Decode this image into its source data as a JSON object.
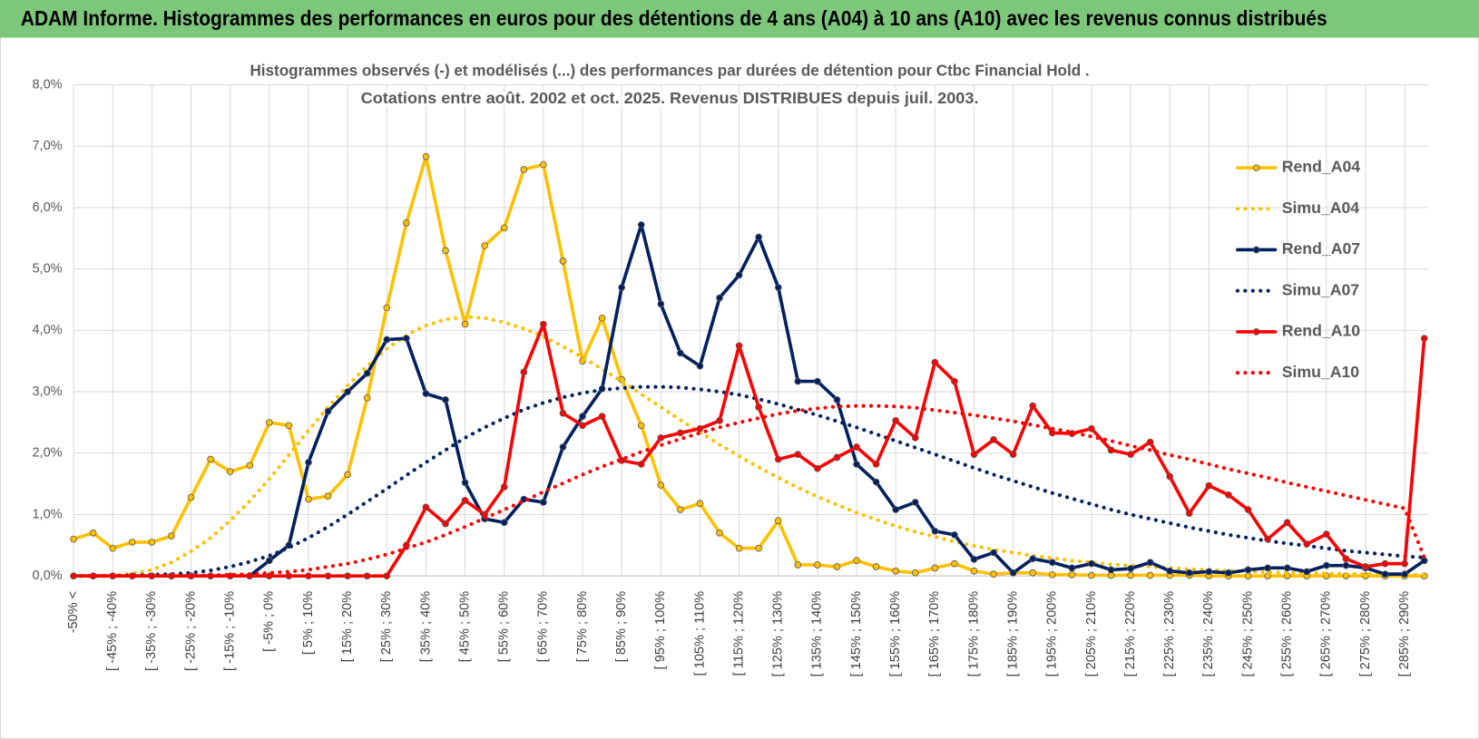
{
  "header": {
    "title": "ADAM Informe. Histogrammes des performances en euros pour des détentions de 4 ans (A04) à 10 ans (A10) avec les revenus connus distribués"
  },
  "chart_data": {
    "type": "line",
    "title": [
      "Histogrammes observés (-) et modélisés (...) des performances par durées de détention pour Ctbc Financial Hold .",
      "Cotations entre août. 2002 et oct. 2025. Revenus DISTRIBUES depuis juil. 2003."
    ],
    "categories": [
      "-50% <",
      null,
      "[ -45% ; -40%",
      null,
      "[ -35% ; -30%",
      null,
      "[ -25% ; -20%",
      null,
      "[ -15% ; -10%",
      null,
      "[ -5% ; 0%",
      null,
      "[ 5% ; 10%",
      null,
      "[ 15% ; 20%",
      null,
      "[ 25% ; 30%",
      null,
      "[ 35% ; 40%",
      null,
      "[ 45% ; 50%",
      null,
      "[ 55% ; 60%",
      null,
      "[ 65% ; 70%",
      null,
      "[ 75% ; 80%",
      null,
      "[ 85% ; 90%",
      null,
      "[ 95% ; 100%",
      null,
      "[ 105% ; 110%",
      null,
      "[ 115% ; 120%",
      null,
      "[ 125% ; 130%",
      null,
      "[ 135% ; 140%",
      null,
      "[ 145% ; 150%",
      null,
      "[ 155% ; 160%",
      null,
      "[ 165% ; 170%",
      null,
      "[ 175% ; 180%",
      null,
      "[ 185% ; 190%",
      null,
      "[ 195% ; 200%",
      null,
      "[ 205% ; 210%",
      null,
      "[ 215% ; 220%",
      null,
      "[ 225% ; 230%",
      null,
      "[ 235% ; 240%",
      null,
      "[ 245% ; 250%",
      null,
      "[ 255% ; 260%",
      null,
      "[ 265% ; 270%",
      null,
      "[ 275% ; 280%",
      null,
      "[ 285% ; 290%",
      null
    ],
    "ylim": [
      0,
      8
    ],
    "yticks": [
      {
        "value": 0,
        "label": "0,0%"
      },
      {
        "value": 1,
        "label": "1,0%"
      },
      {
        "value": 2,
        "label": "2,0%"
      },
      {
        "value": 3,
        "label": "3,0%"
      },
      {
        "value": 4,
        "label": "4,0%"
      },
      {
        "value": 5,
        "label": "5,0%"
      },
      {
        "value": 6,
        "label": "6,0%"
      },
      {
        "value": 7,
        "label": "7,0%"
      },
      {
        "value": 8,
        "label": "8,0%"
      }
    ],
    "grid": true,
    "legend": "right",
    "series": [
      {
        "name": "Rend_A04",
        "color": "#ffc000",
        "line_style": "solid",
        "markers": true,
        "values": [
          0.6,
          0.7,
          0.45,
          0.55,
          0.55,
          0.65,
          1.28,
          1.9,
          1.7,
          1.8,
          2.5,
          2.45,
          1.25,
          1.3,
          1.65,
          2.9,
          4.37,
          5.75,
          6.83,
          5.3,
          4.1,
          5.38,
          5.67,
          6.62,
          6.7,
          5.13,
          3.5,
          4.2,
          3.2,
          2.45,
          1.48,
          1.08,
          1.18,
          0.7,
          0.45,
          0.45,
          0.9,
          0.18,
          0.18,
          0.15,
          0.25,
          0.15,
          0.08,
          0.05,
          0.13,
          0.2,
          0.08,
          0.03,
          0.05,
          0.05,
          0.02,
          0.02,
          0.01,
          0.01,
          0.01,
          0.01,
          0.01,
          0.01,
          0,
          0,
          0,
          0,
          0,
          0,
          0,
          0,
          0,
          0,
          0,
          0
        ]
      },
      {
        "name": "Simu_A04",
        "color": "#ffc000",
        "line_style": "dotted",
        "markers": false,
        "values": [
          0,
          0,
          0.01,
          0.04,
          0.1,
          0.22,
          0.4,
          0.62,
          0.9,
          1.22,
          1.58,
          1.97,
          2.37,
          2.75,
          3.1,
          3.42,
          3.7,
          3.92,
          4.08,
          4.18,
          4.22,
          4.2,
          4.13,
          4.03,
          3.9,
          3.74,
          3.56,
          3.37,
          3.17,
          2.96,
          2.75,
          2.54,
          2.34,
          2.14,
          1.95,
          1.77,
          1.6,
          1.44,
          1.29,
          1.16,
          1.03,
          0.92,
          0.81,
          0.72,
          0.64,
          0.56,
          0.49,
          0.43,
          0.38,
          0.33,
          0.29,
          0.25,
          0.22,
          0.19,
          0.17,
          0.15,
          0.13,
          0.11,
          0.1,
          0.08,
          0.07,
          0.06,
          0.05,
          0.05,
          0.04,
          0.03,
          0.03,
          0.03,
          0.02,
          0.02
        ]
      },
      {
        "name": "Rend_A07",
        "color": "#002060",
        "line_style": "solid",
        "markers": true,
        "values": [
          0,
          0,
          0,
          0,
          0,
          0,
          0,
          0,
          0,
          0,
          0.25,
          0.5,
          1.85,
          2.68,
          3.0,
          3.3,
          3.85,
          3.87,
          2.97,
          2.87,
          1.52,
          0.93,
          0.87,
          1.25,
          1.2,
          2.1,
          2.6,
          3.05,
          4.7,
          5.72,
          4.43,
          3.63,
          3.42,
          4.53,
          4.9,
          5.52,
          4.7,
          3.17,
          3.17,
          2.87,
          1.82,
          1.53,
          1.08,
          1.2,
          0.73,
          0.67,
          0.27,
          0.38,
          0.05,
          0.28,
          0.22,
          0.13,
          0.2,
          0.1,
          0.12,
          0.22,
          0.08,
          0.05,
          0.07,
          0.05,
          0.1,
          0.13,
          0.13,
          0.07,
          0.17,
          0.17,
          0.13,
          0.03,
          0.03,
          0.25
        ]
      },
      {
        "name": "Simu_A07",
        "color": "#002060",
        "line_style": "dotted",
        "markers": false,
        "values": [
          0,
          0,
          0,
          0.01,
          0.02,
          0.03,
          0.05,
          0.09,
          0.15,
          0.23,
          0.33,
          0.46,
          0.62,
          0.8,
          1.0,
          1.21,
          1.42,
          1.64,
          1.85,
          2.05,
          2.25,
          2.42,
          2.57,
          2.71,
          2.82,
          2.91,
          2.98,
          3.03,
          3.06,
          3.08,
          3.08,
          3.07,
          3.04,
          3.0,
          2.95,
          2.88,
          2.8,
          2.71,
          2.62,
          2.52,
          2.42,
          2.31,
          2.2,
          2.09,
          1.98,
          1.87,
          1.76,
          1.65,
          1.55,
          1.45,
          1.35,
          1.26,
          1.17,
          1.08,
          1.0,
          0.93,
          0.86,
          0.79,
          0.73,
          0.67,
          0.62,
          0.57,
          0.53,
          0.49,
          0.45,
          0.41,
          0.38,
          0.35,
          0.32,
          0.3
        ]
      },
      {
        "name": "Rend_A10",
        "color": "#ff0000",
        "line_style": "solid",
        "markers": true,
        "values": [
          0,
          0,
          0,
          0,
          0,
          0,
          0,
          0,
          0,
          0,
          0,
          0,
          0,
          0,
          0,
          0,
          0,
          0.5,
          1.12,
          0.85,
          1.23,
          1.0,
          1.45,
          3.32,
          4.1,
          2.65,
          2.45,
          2.6,
          1.88,
          1.82,
          2.25,
          2.33,
          2.4,
          2.53,
          3.75,
          2.75,
          1.9,
          1.98,
          1.75,
          1.93,
          2.1,
          1.82,
          2.53,
          2.25,
          3.48,
          3.17,
          1.98,
          2.22,
          1.98,
          2.77,
          2.33,
          2.32,
          2.4,
          2.05,
          1.98,
          2.18,
          1.62,
          1.02,
          1.47,
          1.32,
          1.08,
          0.6,
          0.87,
          0.52,
          0.68,
          0.28,
          0.15,
          0.2,
          0.2,
          3.87
        ]
      },
      {
        "name": "Simu_A10",
        "color": "#ff0000",
        "line_style": "dotted",
        "markers": false,
        "values": [
          0,
          0,
          0,
          0,
          0,
          0,
          0,
          0.01,
          0.02,
          0.03,
          0.05,
          0.07,
          0.1,
          0.15,
          0.2,
          0.27,
          0.35,
          0.45,
          0.55,
          0.67,
          0.8,
          0.94,
          1.08,
          1.22,
          1.37,
          1.51,
          1.65,
          1.78,
          1.9,
          2.02,
          2.13,
          2.23,
          2.33,
          2.42,
          2.5,
          2.57,
          2.64,
          2.69,
          2.73,
          2.76,
          2.77,
          2.77,
          2.76,
          2.74,
          2.7,
          2.66,
          2.62,
          2.57,
          2.52,
          2.46,
          2.4,
          2.34,
          2.27,
          2.2,
          2.12,
          2.05,
          1.97,
          1.9,
          1.82,
          1.74,
          1.67,
          1.6,
          1.52,
          1.45,
          1.38,
          1.31,
          1.24,
          1.17,
          1.1,
          0.3
        ]
      }
    ]
  }
}
